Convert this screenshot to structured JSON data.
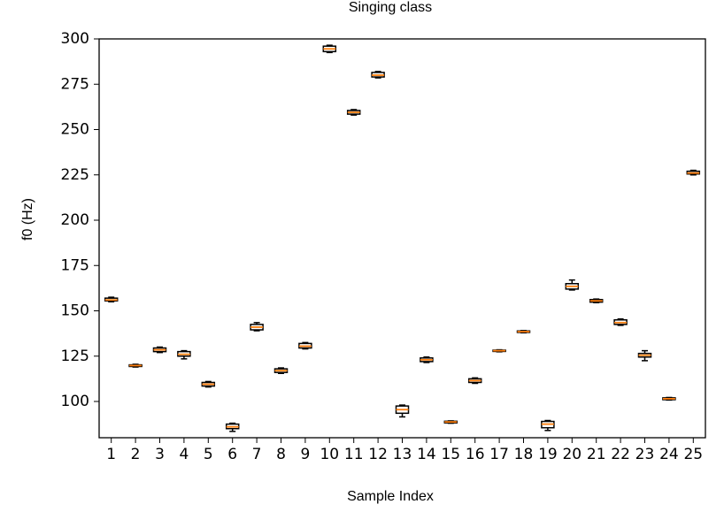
{
  "chart_data": {
    "type": "box",
    "title": "Singing class",
    "x_label": "Sample Index",
    "y_label": "f0 (Hz)",
    "categories": [
      "1",
      "2",
      "3",
      "4",
      "5",
      "6",
      "7",
      "8",
      "9",
      "10",
      "11",
      "12",
      "13",
      "14",
      "15",
      "16",
      "17",
      "18",
      "19",
      "20",
      "21",
      "22",
      "23",
      "24",
      "25"
    ],
    "boxes": [
      {
        "min": 155,
        "q1": 155.5,
        "median": 156,
        "q3": 157,
        "max": 157.5
      },
      {
        "min": 119,
        "q1": 119.3,
        "median": 119.8,
        "q3": 120.2,
        "max": 120.5
      },
      {
        "min": 127,
        "q1": 127.5,
        "median": 128.5,
        "q3": 129.5,
        "max": 130
      },
      {
        "min": 123.5,
        "q1": 125,
        "median": 126,
        "q3": 127.5,
        "max": 128
      },
      {
        "min": 108,
        "q1": 108.5,
        "median": 109.5,
        "q3": 110.5,
        "max": 111
      },
      {
        "min": 83.5,
        "q1": 85,
        "median": 86,
        "q3": 87.5,
        "max": 88
      },
      {
        "min": 139,
        "q1": 139.5,
        "median": 141,
        "q3": 142.5,
        "max": 143.5
      },
      {
        "min": 115.5,
        "q1": 116,
        "median": 117,
        "q3": 118,
        "max": 118.5
      },
      {
        "min": 129,
        "q1": 129.5,
        "median": 130.5,
        "q3": 132,
        "max": 132.5
      },
      {
        "min": 292.5,
        "q1": 293,
        "median": 294.5,
        "q3": 296,
        "max": 296.5
      },
      {
        "min": 258,
        "q1": 258.5,
        "median": 259.5,
        "q3": 260.5,
        "max": 261
      },
      {
        "min": 278.5,
        "q1": 279,
        "median": 280,
        "q3": 281.5,
        "max": 282
      },
      {
        "min": 91.5,
        "q1": 93.5,
        "median": 95.5,
        "q3": 97.5,
        "max": 98
      },
      {
        "min": 121.5,
        "q1": 122,
        "median": 123,
        "q3": 124,
        "max": 124.5
      },
      {
        "min": 88,
        "q1": 88.2,
        "median": 88.7,
        "q3": 89.1,
        "max": 89.3
      },
      {
        "min": 110,
        "q1": 110.5,
        "median": 111.5,
        "q3": 112.5,
        "max": 113
      },
      {
        "min": 127.4,
        "q1": 127.6,
        "median": 128,
        "q3": 128.3,
        "max": 128.5
      },
      {
        "min": 137.9,
        "q1": 138.1,
        "median": 138.5,
        "q3": 138.9,
        "max": 139.1
      },
      {
        "min": 84,
        "q1": 85.5,
        "median": 87.5,
        "q3": 89,
        "max": 89.5
      },
      {
        "min": 161.5,
        "q1": 162,
        "median": 163.5,
        "q3": 165,
        "max": 167
      },
      {
        "min": 154.5,
        "q1": 154.8,
        "median": 155.5,
        "q3": 156.2,
        "max": 156.5
      },
      {
        "min": 142,
        "q1": 142.5,
        "median": 143.5,
        "q3": 145,
        "max": 145.5
      },
      {
        "min": 122.5,
        "q1": 124.5,
        "median": 125.5,
        "q3": 126.5,
        "max": 128
      },
      {
        "min": 100.8,
        "q1": 101,
        "median": 101.5,
        "q3": 102,
        "max": 102.2
      },
      {
        "min": 225,
        "q1": 225.5,
        "median": 226,
        "q3": 227,
        "max": 227.5
      }
    ],
    "box_color": "#000000",
    "median_color": "#ff7f0e",
    "ylim": [
      80,
      300
    ],
    "yticks": [
      100,
      125,
      150,
      175,
      200,
      225,
      250,
      275,
      300
    ],
    "grid": false
  }
}
